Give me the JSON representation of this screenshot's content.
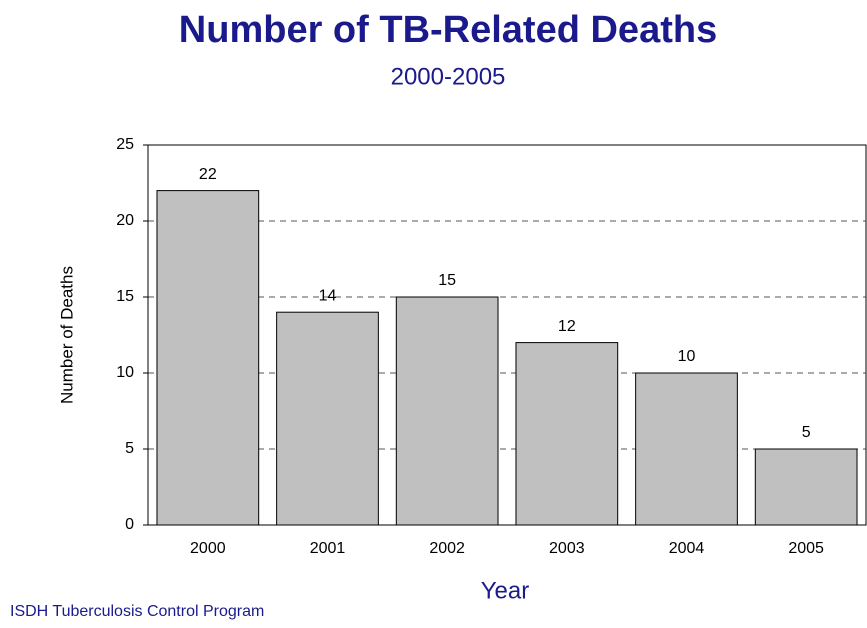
{
  "chart_data": {
    "type": "bar",
    "title": "Number of TB-Related Deaths",
    "subtitle": "2000-2005",
    "x_label": "Year",
    "y_label": "Number of Deaths",
    "source": "ISDH Tuberculosis Control Program",
    "categories": [
      "2000",
      "2001",
      "2002",
      "2003",
      "2004",
      "2005"
    ],
    "values": [
      22,
      14,
      15,
      12,
      10,
      5
    ],
    "color": "#c0c0c0",
    "ylim": [
      0,
      25
    ],
    "yticks": [
      0,
      5,
      10,
      15,
      20,
      25
    ],
    "grid": true
  }
}
